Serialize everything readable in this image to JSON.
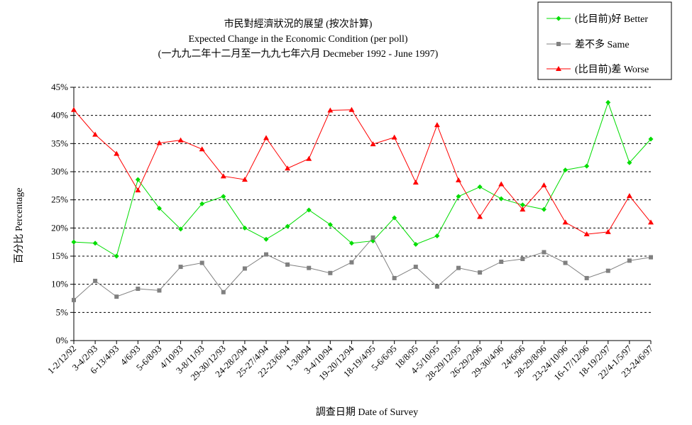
{
  "chart_data": {
    "type": "line",
    "title_zh": "市民對經濟狀況的展望 (按次計算)",
    "title_en": "Expected Change in the Economic Condition (per poll)",
    "subtitle": "(一九九二年十二月至一九九七年六月 Decmeber 1992 - June 1997)",
    "xlabel": "調查日期 Date of Survey",
    "ylabel": "百分比 Percentage",
    "ylim": [
      0,
      45
    ],
    "yticks": [
      "0%",
      "5%",
      "10%",
      "15%",
      "20%",
      "25%",
      "30%",
      "35%",
      "40%",
      "45%"
    ],
    "grid": true,
    "legend_position": "top-right",
    "categories": [
      "1-2/12/92",
      "3-4/2/93",
      "6-13/4/93",
      "4/6/93",
      "5-6/8/93",
      "4/10/93",
      "3-8/11/93",
      "29-30/12/93",
      "24-28/2/94",
      "25-27/4/94",
      "22-23/6/94",
      "1-3/8/94",
      "3-4/10/94",
      "19-20/12/94",
      "18-19/4/95",
      "5-6/6/95",
      "18/8/95",
      "4-5/10/95",
      "28-29/12/95",
      "26-29/2/96",
      "29-30/4/96",
      "24/6/96",
      "28-29/8/96",
      "23-24/10/96",
      "16-17/12/96",
      "18-19/2/97",
      "22/4-1/5/97",
      "23-24/6/97"
    ],
    "series": [
      {
        "name": "(比目前)好 Better",
        "color": "#00dd00",
        "marker": "diamond",
        "values": [
          17.5,
          17.3,
          15.0,
          28.6,
          23.5,
          19.8,
          24.3,
          25.6,
          20.0,
          18.0,
          20.3,
          23.2,
          20.6,
          17.3,
          17.7,
          21.8,
          17.1,
          18.6,
          25.6,
          27.3,
          25.2,
          24.1,
          23.3,
          30.3,
          31.0,
          42.3,
          31.6,
          35.8
        ]
      },
      {
        "name": "差不多 Same",
        "color": "#808080",
        "marker": "square",
        "values": [
          7.2,
          10.6,
          7.8,
          9.2,
          8.9,
          13.1,
          13.8,
          8.6,
          12.8,
          15.3,
          13.5,
          12.9,
          12.0,
          13.9,
          18.3,
          11.1,
          13.1,
          9.6,
          12.9,
          12.1,
          14.0,
          14.5,
          15.7,
          13.8,
          11.1,
          12.4,
          14.2,
          14.8
        ]
      },
      {
        "name": "(比目前)差 Worse",
        "color": "#ff0000",
        "marker": "triangle",
        "values": [
          41.0,
          36.6,
          33.2,
          26.7,
          35.1,
          35.6,
          34.0,
          29.2,
          28.6,
          36.0,
          30.6,
          32.3,
          40.9,
          41.0,
          34.9,
          36.1,
          28.1,
          38.3,
          28.5,
          22.0,
          27.8,
          23.3,
          27.6,
          21.0,
          18.9,
          19.3,
          25.7,
          21.0
        ]
      }
    ]
  }
}
